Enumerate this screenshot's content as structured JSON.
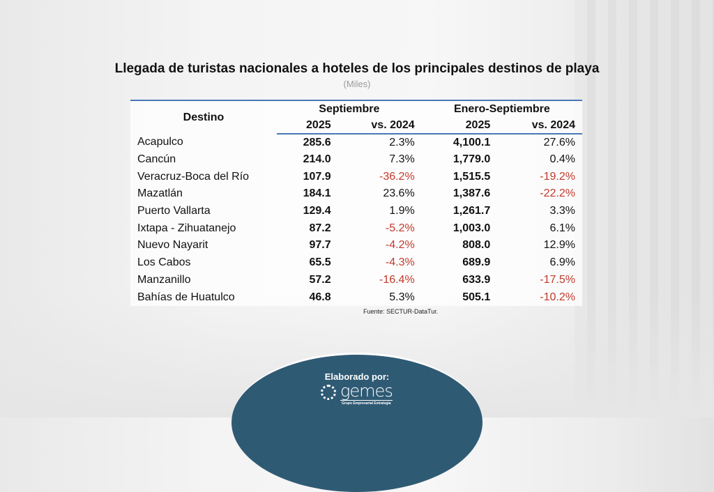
{
  "title": "Llegada de turistas nacionales a hoteles de los principales destinos de playa",
  "subtitle": "(Miles)",
  "table": {
    "headers": {
      "destino": "Destino",
      "sept": "Septiembre",
      "ene_sept": "Enero-Septiembre",
      "y2025": "2025",
      "vs2024": "vs. 2024"
    },
    "rows": [
      [
        "Acapulco",
        "285.6",
        "2.3%",
        "4,100.1",
        "27.6%"
      ],
      [
        "Cancún",
        "214.0",
        "7.3%",
        "1,779.0",
        "0.4%"
      ],
      [
        "Veracruz-Boca del Río",
        "107.9",
        "-36.2%",
        "1,515.5",
        "-19.2%"
      ],
      [
        "Mazatlán",
        "184.1",
        "23.6%",
        "1,387.6",
        "-22.2%"
      ],
      [
        "Puerto Vallarta",
        "129.4",
        "1.9%",
        "1,261.7",
        "3.3%"
      ],
      [
        "Ixtapa - Zihuatanejo",
        "87.2",
        "-5.2%",
        "1,003.0",
        "6.1%"
      ],
      [
        "Nuevo Nayarit",
        "97.7",
        "-4.2%",
        "808.0",
        "12.9%"
      ],
      [
        "Los Cabos",
        "65.5",
        "-4.3%",
        "689.9",
        "6.9%"
      ],
      [
        "Manzanillo",
        "57.2",
        "-16.4%",
        "633.9",
        "-17.5%"
      ],
      [
        "Bahías de Huatulco",
        "46.8",
        "5.3%",
        "505.1",
        "-10.2%"
      ]
    ]
  },
  "source": "Fuente: SECTUR-DataTur.",
  "footer": {
    "label": "Elaborado por:",
    "logo_text": "gemes",
    "logo_tagline": "Grupo Empresarial Estrategia"
  },
  "colors": {
    "accent": "#4a78b8",
    "negative": "#c0392b",
    "badge": "#2f5a74"
  }
}
